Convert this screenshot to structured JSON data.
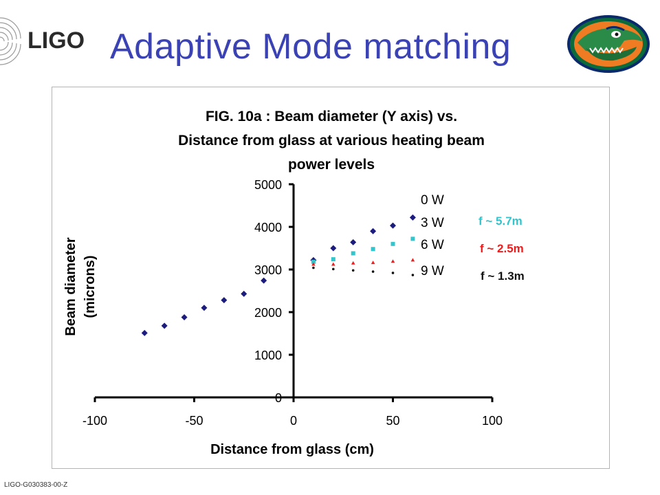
{
  "header": {
    "logo_text": "LIGO",
    "title": "Adaptive Mode matching"
  },
  "footer": {
    "document_id": "LIGO-G030383-00-Z"
  },
  "chart_data": {
    "type": "scatter",
    "title_lines": [
      "FIG. 10a :        Beam diameter (Y axis) vs.",
      "Distance from glass at various heating beam",
      "power levels"
    ],
    "xlabel": "Distance from glass (cm)",
    "ylabel_lines": [
      "Beam diameter",
      "(microns)"
    ],
    "xlim": [
      -100,
      100
    ],
    "ylim": [
      0,
      5000
    ],
    "x_ticks": [
      -100,
      -50,
      0,
      50,
      100
    ],
    "y_ticks": [
      0,
      1000,
      2000,
      3000,
      4000,
      5000
    ],
    "grid": false,
    "legend": "none",
    "series": [
      {
        "name": "0 W",
        "color": "#1c1c7e",
        "marker": "diamond",
        "points": [
          [
            -75,
            1510
          ],
          [
            -65,
            1680
          ],
          [
            -55,
            1880
          ],
          [
            -45,
            2100
          ],
          [
            -35,
            2280
          ],
          [
            -25,
            2430
          ],
          [
            -15,
            2740
          ],
          [
            10,
            3220
          ],
          [
            20,
            3500
          ],
          [
            30,
            3640
          ],
          [
            40,
            3900
          ],
          [
            50,
            4030
          ],
          [
            60,
            4220
          ]
        ]
      },
      {
        "name": "3 W",
        "color": "#33c4cc",
        "marker": "square",
        "points": [
          [
            10,
            3180
          ],
          [
            20,
            3240
          ],
          [
            30,
            3380
          ],
          [
            40,
            3480
          ],
          [
            50,
            3600
          ],
          [
            60,
            3720
          ]
        ]
      },
      {
        "name": "6 W",
        "color": "#ee1c1c",
        "marker": "triangle",
        "points": [
          [
            10,
            3120
          ],
          [
            20,
            3120
          ],
          [
            30,
            3150
          ],
          [
            40,
            3160
          ],
          [
            50,
            3190
          ],
          [
            60,
            3220
          ]
        ]
      },
      {
        "name": "9 W",
        "color": "#111111",
        "marker": "dot",
        "points": [
          [
            10,
            3040
          ],
          [
            20,
            3010
          ],
          [
            30,
            2980
          ],
          [
            40,
            2950
          ],
          [
            50,
            2920
          ],
          [
            60,
            2870
          ]
        ]
      }
    ],
    "annotations": [
      {
        "text": "f ~ 5.7m",
        "color": "#33c4cc"
      },
      {
        "text": "f ~ 2.5m",
        "color": "#ee1c1c"
      },
      {
        "text": "f ~ 1.3m",
        "color": "#111111"
      }
    ]
  }
}
